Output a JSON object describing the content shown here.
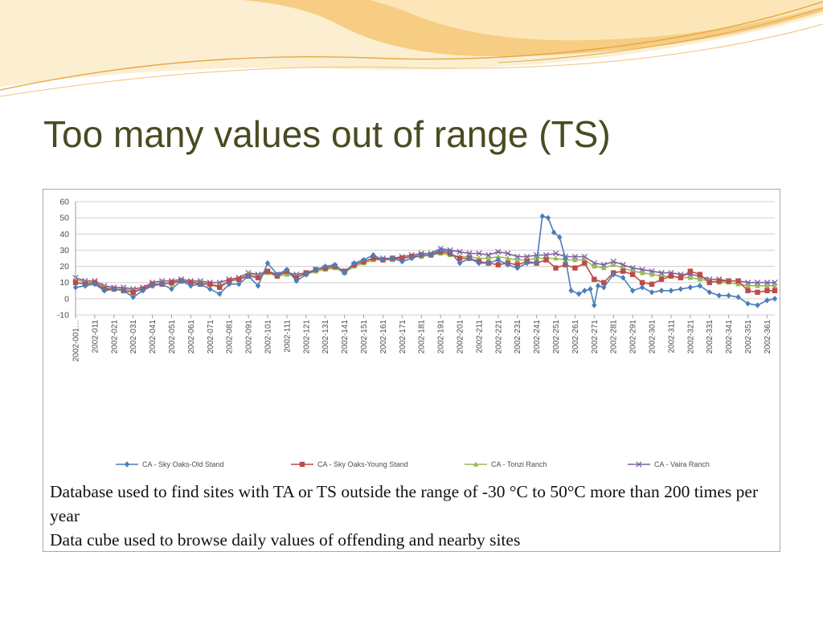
{
  "slide": {
    "title": "Too many values out of range (TS)",
    "caption_lines": [
      "Database used to find sites with TA or TS outside the range of -30 °C to 50°C more than 200 times per year",
      "Data cube used to browse daily values of offending and nearby sites"
    ]
  },
  "colors": {
    "title": "#4a4b22",
    "accent_orange": "#f2b04c",
    "accent_light": "#fbe3a8"
  },
  "chart_data": {
    "type": "line",
    "title": "",
    "xlabel": "",
    "ylabel": "",
    "ylim": [
      -10,
      60
    ],
    "yticks": [
      -10,
      0,
      10,
      20,
      30,
      40,
      50,
      60
    ],
    "grid": true,
    "legend_position": "bottom",
    "x_tick_labels": [
      "2002-001…",
      "2002-011",
      "2002-021",
      "2002-031",
      "2002-041",
      "2002-051",
      "2002-061",
      "2002-071",
      "2002-081",
      "2002-091",
      "2002-101",
      "2002-111",
      "2002-121",
      "2002-131",
      "2002-141",
      "2002-151",
      "2002-161",
      "2002-171",
      "2002-181",
      "2002-191",
      "2002-201",
      "2002-211",
      "2002-221",
      "2002-231",
      "2002-241",
      "2002-251",
      "2002-261",
      "2002-271",
      "2002-281",
      "2002-291",
      "2002-301",
      "2002-311",
      "2002-321",
      "2002-331",
      "2002-341",
      "2002-351",
      "2002-361"
    ],
    "x_day_range": [
      1,
      365
    ],
    "series": [
      {
        "name": "CA - Sky Oaks-Old Stand",
        "color": "#4a7ebb",
        "marker": "diamond",
        "points": [
          [
            1,
            7
          ],
          [
            6,
            8
          ],
          [
            11,
            9
          ],
          [
            16,
            5
          ],
          [
            21,
            6
          ],
          [
            26,
            5
          ],
          [
            31,
            1
          ],
          [
            36,
            5
          ],
          [
            41,
            8
          ],
          [
            46,
            9
          ],
          [
            51,
            6
          ],
          [
            56,
            11
          ],
          [
            61,
            8
          ],
          [
            66,
            9
          ],
          [
            71,
            6
          ],
          [
            76,
            3
          ],
          [
            81,
            9
          ],
          [
            86,
            9
          ],
          [
            91,
            14
          ],
          [
            96,
            8
          ],
          [
            101,
            22
          ],
          [
            106,
            15
          ],
          [
            111,
            18
          ],
          [
            116,
            11
          ],
          [
            121,
            15
          ],
          [
            126,
            18
          ],
          [
            131,
            20
          ],
          [
            136,
            21
          ],
          [
            141,
            16
          ],
          [
            146,
            22
          ],
          [
            151,
            24
          ],
          [
            156,
            27
          ],
          [
            161,
            24
          ],
          [
            166,
            25
          ],
          [
            171,
            23
          ],
          [
            176,
            25
          ],
          [
            181,
            27
          ],
          [
            186,
            27
          ],
          [
            191,
            30
          ],
          [
            196,
            29
          ],
          [
            201,
            22
          ],
          [
            206,
            25
          ],
          [
            211,
            22
          ],
          [
            216,
            22
          ],
          [
            221,
            24
          ],
          [
            226,
            21
          ],
          [
            231,
            19
          ],
          [
            236,
            22
          ],
          [
            241,
            22
          ],
          [
            244,
            51
          ],
          [
            247,
            50
          ],
          [
            250,
            41
          ],
          [
            253,
            38
          ],
          [
            256,
            25
          ],
          [
            259,
            5
          ],
          [
            263,
            3
          ],
          [
            266,
            5
          ],
          [
            269,
            6
          ],
          [
            271,
            -4
          ],
          [
            273,
            8
          ],
          [
            276,
            7
          ],
          [
            281,
            15
          ],
          [
            286,
            13
          ],
          [
            291,
            5
          ],
          [
            296,
            7
          ],
          [
            301,
            4
          ],
          [
            306,
            5
          ],
          [
            311,
            5
          ],
          [
            316,
            6
          ],
          [
            321,
            7
          ],
          [
            326,
            8
          ],
          [
            331,
            4
          ],
          [
            336,
            2
          ],
          [
            341,
            2
          ],
          [
            346,
            1
          ],
          [
            351,
            -3
          ],
          [
            356,
            -4
          ],
          [
            361,
            -1
          ],
          [
            365,
            0
          ]
        ]
      },
      {
        "name": "CA - Sky Oaks-Young Stand",
        "color": "#be4b48",
        "marker": "square",
        "points": [
          [
            1,
            10
          ],
          [
            6,
            9
          ],
          [
            11,
            10
          ],
          [
            16,
            6
          ],
          [
            21,
            6
          ],
          [
            26,
            5
          ],
          [
            31,
            4
          ],
          [
            36,
            6
          ],
          [
            41,
            9
          ],
          [
            46,
            9
          ],
          [
            51,
            10
          ],
          [
            56,
            11
          ],
          [
            61,
            10
          ],
          [
            66,
            9
          ],
          [
            71,
            9
          ],
          [
            76,
            7
          ],
          [
            81,
            11
          ],
          [
            86,
            12
          ],
          [
            91,
            14
          ],
          [
            96,
            13
          ],
          [
            101,
            17
          ],
          [
            106,
            14
          ],
          [
            111,
            17
          ],
          [
            116,
            13
          ],
          [
            121,
            16
          ],
          [
            126,
            18
          ],
          [
            131,
            19
          ],
          [
            136,
            20
          ],
          [
            141,
            17
          ],
          [
            146,
            21
          ],
          [
            151,
            23
          ],
          [
            156,
            25
          ],
          [
            161,
            24
          ],
          [
            166,
            25
          ],
          [
            171,
            25
          ],
          [
            176,
            26
          ],
          [
            181,
            27
          ],
          [
            186,
            27
          ],
          [
            191,
            29
          ],
          [
            196,
            28
          ],
          [
            201,
            25
          ],
          [
            206,
            25
          ],
          [
            211,
            23
          ],
          [
            216,
            22
          ],
          [
            221,
            21
          ],
          [
            226,
            22
          ],
          [
            231,
            21
          ],
          [
            236,
            23
          ],
          [
            241,
            22
          ],
          [
            246,
            24
          ],
          [
            251,
            19
          ],
          [
            256,
            21
          ],
          [
            261,
            19
          ],
          [
            266,
            22
          ],
          [
            271,
            12
          ],
          [
            276,
            10
          ],
          [
            281,
            16
          ],
          [
            286,
            17
          ],
          [
            291,
            15
          ],
          [
            296,
            10
          ],
          [
            301,
            9
          ],
          [
            306,
            12
          ],
          [
            311,
            14
          ],
          [
            316,
            13
          ],
          [
            321,
            17
          ],
          [
            326,
            15
          ],
          [
            331,
            10
          ],
          [
            336,
            11
          ],
          [
            341,
            11
          ],
          [
            346,
            11
          ],
          [
            351,
            5
          ],
          [
            356,
            4
          ],
          [
            361,
            5
          ],
          [
            365,
            5
          ]
        ]
      },
      {
        "name": "CA - Tonzi Ranch",
        "color": "#98b954",
        "marker": "triangle",
        "points": [
          [
            1,
            12
          ],
          [
            6,
            10
          ],
          [
            11,
            10
          ],
          [
            16,
            7
          ],
          [
            21,
            6
          ],
          [
            26,
            6
          ],
          [
            31,
            5
          ],
          [
            36,
            6
          ],
          [
            41,
            8
          ],
          [
            46,
            10
          ],
          [
            51,
            9
          ],
          [
            56,
            11
          ],
          [
            61,
            10
          ],
          [
            66,
            10
          ],
          [
            71,
            9
          ],
          [
            76,
            8
          ],
          [
            81,
            11
          ],
          [
            86,
            12
          ],
          [
            91,
            15
          ],
          [
            96,
            14
          ],
          [
            101,
            16
          ],
          [
            106,
            14
          ],
          [
            111,
            15
          ],
          [
            116,
            14
          ],
          [
            121,
            15
          ],
          [
            126,
            17
          ],
          [
            131,
            18
          ],
          [
            136,
            19
          ],
          [
            141,
            16
          ],
          [
            146,
            20
          ],
          [
            151,
            22
          ],
          [
            156,
            24
          ],
          [
            161,
            24
          ],
          [
            166,
            24
          ],
          [
            171,
            25
          ],
          [
            176,
            26
          ],
          [
            181,
            26
          ],
          [
            186,
            27
          ],
          [
            191,
            28
          ],
          [
            196,
            27
          ],
          [
            201,
            26
          ],
          [
            206,
            26
          ],
          [
            211,
            25
          ],
          [
            216,
            25
          ],
          [
            221,
            26
          ],
          [
            226,
            25
          ],
          [
            231,
            24
          ],
          [
            236,
            24
          ],
          [
            241,
            25
          ],
          [
            246,
            25
          ],
          [
            251,
            25
          ],
          [
            256,
            24
          ],
          [
            261,
            24
          ],
          [
            266,
            24
          ],
          [
            271,
            20
          ],
          [
            276,
            19
          ],
          [
            281,
            21
          ],
          [
            286,
            19
          ],
          [
            291,
            17
          ],
          [
            296,
            16
          ],
          [
            301,
            15
          ],
          [
            306,
            14
          ],
          [
            311,
            14
          ],
          [
            316,
            13
          ],
          [
            321,
            13
          ],
          [
            326,
            12
          ],
          [
            331,
            11
          ],
          [
            336,
            10
          ],
          [
            341,
            10
          ],
          [
            346,
            9
          ],
          [
            351,
            8
          ],
          [
            356,
            8
          ],
          [
            361,
            8
          ],
          [
            365,
            8
          ]
        ]
      },
      {
        "name": "CA - Vaira Ranch",
        "color": "#7d60a0",
        "marker": "x",
        "points": [
          [
            1,
            13
          ],
          [
            6,
            11
          ],
          [
            11,
            11
          ],
          [
            16,
            8
          ],
          [
            21,
            7
          ],
          [
            26,
            7
          ],
          [
            31,
            6
          ],
          [
            36,
            7
          ],
          [
            41,
            10
          ],
          [
            46,
            11
          ],
          [
            51,
            11
          ],
          [
            56,
            12
          ],
          [
            61,
            11
          ],
          [
            66,
            11
          ],
          [
            71,
            10
          ],
          [
            76,
            10
          ],
          [
            81,
            12
          ],
          [
            86,
            13
          ],
          [
            91,
            16
          ],
          [
            96,
            15
          ],
          [
            101,
            17
          ],
          [
            106,
            15
          ],
          [
            111,
            16
          ],
          [
            116,
            15
          ],
          [
            121,
            16
          ],
          [
            126,
            18
          ],
          [
            131,
            19
          ],
          [
            136,
            20
          ],
          [
            141,
            17
          ],
          [
            146,
            21
          ],
          [
            151,
            23
          ],
          [
            156,
            25
          ],
          [
            161,
            25
          ],
          [
            166,
            25
          ],
          [
            171,
            26
          ],
          [
            176,
            27
          ],
          [
            181,
            28
          ],
          [
            186,
            28
          ],
          [
            191,
            31
          ],
          [
            196,
            30
          ],
          [
            201,
            29
          ],
          [
            206,
            28
          ],
          [
            211,
            28
          ],
          [
            216,
            27
          ],
          [
            221,
            29
          ],
          [
            226,
            28
          ],
          [
            231,
            26
          ],
          [
            236,
            26
          ],
          [
            241,
            27
          ],
          [
            246,
            27
          ],
          [
            251,
            28
          ],
          [
            256,
            26
          ],
          [
            261,
            26
          ],
          [
            266,
            26
          ],
          [
            271,
            22
          ],
          [
            276,
            21
          ],
          [
            281,
            23
          ],
          [
            286,
            21
          ],
          [
            291,
            19
          ],
          [
            296,
            18
          ],
          [
            301,
            17
          ],
          [
            306,
            16
          ],
          [
            311,
            16
          ],
          [
            316,
            15
          ],
          [
            321,
            15
          ],
          [
            326,
            14
          ],
          [
            331,
            12
          ],
          [
            336,
            12
          ],
          [
            341,
            11
          ],
          [
            346,
            11
          ],
          [
            351,
            10
          ],
          [
            356,
            10
          ],
          [
            361,
            10
          ],
          [
            365,
            10
          ]
        ]
      }
    ]
  }
}
